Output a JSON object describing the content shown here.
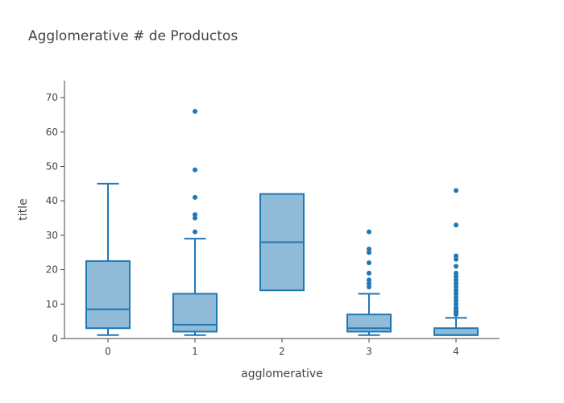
{
  "chart_data": {
    "type": "box",
    "title": "Agglomerative # de Productos",
    "xlabel": "agglomerative",
    "ylabel": "title",
    "categories": [
      "0",
      "1",
      "2",
      "3",
      "4"
    ],
    "ylim": [
      0,
      75
    ],
    "yticks": [
      0,
      10,
      20,
      30,
      40,
      50,
      60,
      70
    ],
    "color": "#1f77b4",
    "boxes": [
      {
        "category": "0",
        "min": 1,
        "q1": 3,
        "median": 8.5,
        "q3": 22.5,
        "max": 45,
        "outliers": []
      },
      {
        "category": "1",
        "min": 1,
        "q1": 2,
        "median": 4,
        "q3": 13,
        "max": 29,
        "outliers": [
          31,
          35,
          36,
          41,
          49,
          66
        ]
      },
      {
        "category": "2",
        "min": 14,
        "q1": 14,
        "median": 28,
        "q3": 42,
        "max": 42,
        "outliers": []
      },
      {
        "category": "3",
        "min": 1,
        "q1": 2,
        "median": 3,
        "q3": 7,
        "max": 13,
        "outliers": [
          15,
          16,
          17,
          19,
          22,
          25,
          26,
          31
        ]
      },
      {
        "category": "4",
        "min": 1,
        "q1": 1,
        "median": 1,
        "q3": 3,
        "max": 6,
        "outliers": [
          7,
          7.5,
          8,
          8.5,
          9,
          10,
          11,
          12,
          13,
          14,
          15,
          16,
          17,
          18,
          19,
          21,
          23,
          24,
          33,
          43
        ]
      }
    ]
  }
}
